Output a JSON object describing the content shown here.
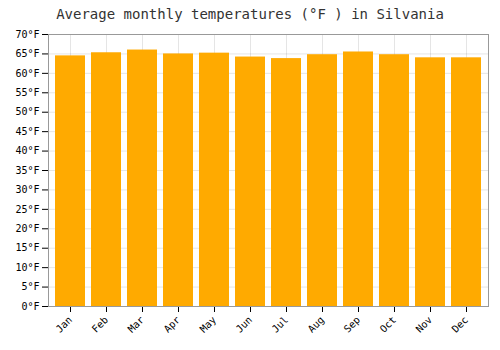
{
  "chart_data": {
    "type": "bar",
    "title": "Average monthly temperatures (°F ) in Silvania",
    "categories": [
      "Jan",
      "Feb",
      "Mar",
      "Apr",
      "May",
      "Jun",
      "Jul",
      "Aug",
      "Sep",
      "Oct",
      "Nov",
      "Dec"
    ],
    "values": [
      64.5,
      65.3,
      66.0,
      65.0,
      65.2,
      64.2,
      63.8,
      64.8,
      65.5,
      64.8,
      64.0,
      64.0
    ],
    "color": "#FFAA00",
    "ylim": [
      0,
      70
    ],
    "yticks": [
      {
        "value": 0,
        "label": "0°F"
      },
      {
        "value": 5,
        "label": "5°F"
      },
      {
        "value": 10,
        "label": "10°F"
      },
      {
        "value": 15,
        "label": "15°F"
      },
      {
        "value": 20,
        "label": "20°F"
      },
      {
        "value": 25,
        "label": "25°F"
      },
      {
        "value": 30,
        "label": "30°F"
      },
      {
        "value": 35,
        "label": "35°F"
      },
      {
        "value": 40,
        "label": "40°F"
      },
      {
        "value": 45,
        "label": "45°F"
      },
      {
        "value": 50,
        "label": "50°F"
      },
      {
        "value": 55,
        "label": "55°F"
      },
      {
        "value": 60,
        "label": "60°F"
      },
      {
        "value": 65,
        "label": "65°F"
      },
      {
        "value": 70,
        "label": "70°F"
      }
    ],
    "grid": true
  }
}
